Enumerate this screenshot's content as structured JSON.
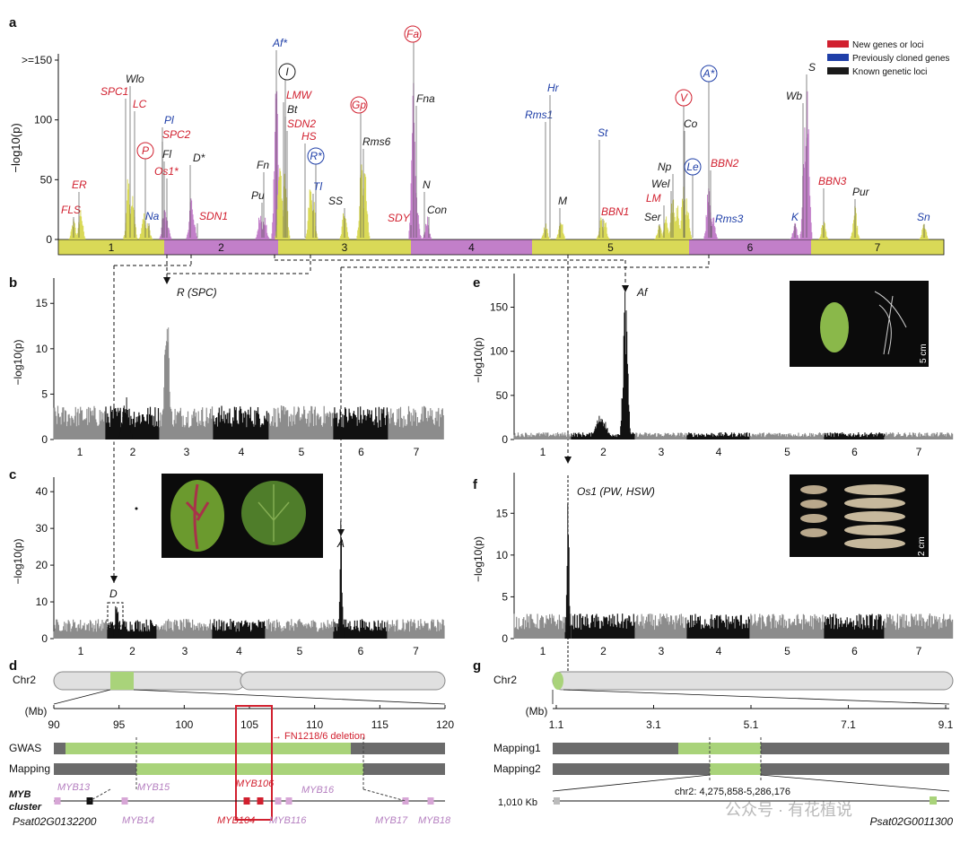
{
  "colors": {
    "new": "#d1202f",
    "prev": "#1f3fa8",
    "known": "#1a1a1a",
    "yellow": "#d9d957",
    "purple": "#c27fc9",
    "green": "#a9d37a",
    "grey": "#8c8c8c",
    "black": "#111111",
    "darkbar": "#6b6b6b",
    "lightbar": "#e0e0e0"
  },
  "panels": {
    "a": "a",
    "b": "b",
    "c": "c",
    "d": "d",
    "e": "e",
    "f": "f",
    "g": "g"
  },
  "legend": [
    {
      "label": "New genes or loci",
      "color": "#d1202f"
    },
    {
      "label": "Previously cloned genes",
      "color": "#1f3fa8"
    },
    {
      "label": "Known genetic loci",
      "color": "#1a1a1a"
    }
  ],
  "panel_a": {
    "ylabel": "−log10(p)",
    "yticks": [
      {
        "v": 0,
        "t": "0"
      },
      {
        "v": 50,
        "t": "50"
      },
      {
        "v": 100,
        "t": "100"
      },
      {
        "v": 150,
        "t": ">=150"
      }
    ],
    "chromosomes": [
      "1",
      "2",
      "3",
      "4",
      "5",
      "6",
      "7"
    ],
    "loci": [
      {
        "name": "FLS",
        "c": "new",
        "circ": false
      },
      {
        "name": "ER",
        "c": "new",
        "circ": false
      },
      {
        "name": "SPC1",
        "c": "new",
        "circ": false
      },
      {
        "name": "Wlo",
        "c": "known",
        "circ": false
      },
      {
        "name": "LC",
        "c": "new",
        "circ": false
      },
      {
        "name": "P",
        "c": "new",
        "circ": true
      },
      {
        "name": "Na",
        "c": "prev",
        "circ": false
      },
      {
        "name": "Pl",
        "c": "prev",
        "circ": false
      },
      {
        "name": "SPC2",
        "c": "new",
        "circ": false
      },
      {
        "name": "Fl",
        "c": "known",
        "circ": false
      },
      {
        "name": "Os1*",
        "c": "new",
        "circ": false
      },
      {
        "name": "D*",
        "c": "known",
        "circ": false
      },
      {
        "name": "SDN1",
        "c": "new",
        "circ": false
      },
      {
        "name": "Pu",
        "c": "known",
        "circ": false
      },
      {
        "name": "Fn",
        "c": "known",
        "circ": false
      },
      {
        "name": "Af*",
        "c": "prev",
        "circ": false
      },
      {
        "name": "I",
        "c": "known",
        "circ": true
      },
      {
        "name": "LMW",
        "c": "new",
        "circ": false
      },
      {
        "name": "Bt",
        "c": "known",
        "circ": false
      },
      {
        "name": "SDN2",
        "c": "new",
        "circ": false
      },
      {
        "name": "HS",
        "c": "new",
        "circ": false
      },
      {
        "name": "R*",
        "c": "prev",
        "circ": true
      },
      {
        "name": "Tl",
        "c": "prev",
        "circ": false
      },
      {
        "name": "SS",
        "c": "known",
        "circ": false
      },
      {
        "name": "Gp",
        "c": "new",
        "circ": true
      },
      {
        "name": "Rms6",
        "c": "known",
        "circ": false
      },
      {
        "name": "Fa",
        "c": "new",
        "circ": true
      },
      {
        "name": "Fna",
        "c": "known",
        "circ": false
      },
      {
        "name": "SDY",
        "c": "new",
        "circ": false
      },
      {
        "name": "N",
        "c": "known",
        "circ": false
      },
      {
        "name": "Con",
        "c": "known",
        "circ": false
      },
      {
        "name": "Rms1",
        "c": "prev",
        "circ": false
      },
      {
        "name": "Hr",
        "c": "prev",
        "circ": false
      },
      {
        "name": "M",
        "c": "known",
        "circ": false
      },
      {
        "name": "St",
        "c": "prev",
        "circ": false
      },
      {
        "name": "BBN1",
        "c": "new",
        "circ": false
      },
      {
        "name": "Ser",
        "c": "known",
        "circ": false
      },
      {
        "name": "LM",
        "c": "new",
        "circ": false
      },
      {
        "name": "Wel",
        "c": "known",
        "circ": false
      },
      {
        "name": "Np",
        "c": "known",
        "circ": false
      },
      {
        "name": "V",
        "c": "new",
        "circ": true
      },
      {
        "name": "Co",
        "c": "known",
        "circ": false
      },
      {
        "name": "Le",
        "c": "prev",
        "circ": true
      },
      {
        "name": "A*",
        "c": "prev",
        "circ": true
      },
      {
        "name": "BBN2",
        "c": "new",
        "circ": false
      },
      {
        "name": "Rms3",
        "c": "prev",
        "circ": false
      },
      {
        "name": "K",
        "c": "prev",
        "circ": false
      },
      {
        "name": "Wb",
        "c": "known",
        "circ": false
      },
      {
        "name": "S",
        "c": "known",
        "circ": false
      },
      {
        "name": "BBN3",
        "c": "new",
        "circ": false
      },
      {
        "name": "Pur",
        "c": "known",
        "circ": false
      },
      {
        "name": "Sn",
        "c": "prev",
        "circ": false
      }
    ]
  },
  "panel_b": {
    "ylabel": "−log10(p)",
    "yticks": [
      "0",
      "5",
      "10",
      "15"
    ],
    "chromosomes": [
      "1",
      "2",
      "3",
      "4",
      "5",
      "6",
      "7"
    ],
    "peak_label": "R (SPC)"
  },
  "panel_c": {
    "ylabel": "−log10(p)",
    "yticks": [
      "0",
      "10",
      "20",
      "30",
      "40"
    ],
    "chromosomes": [
      "1",
      "2",
      "3",
      "4",
      "5",
      "6",
      "7"
    ],
    "peak1": "D",
    "peak2": "A"
  },
  "panel_e": {
    "ylabel": "−log10(p)",
    "yticks": [
      "0",
      "50",
      "100",
      "150"
    ],
    "chromosomes": [
      "1",
      "2",
      "3",
      "4",
      "5",
      "6",
      "7"
    ],
    "peak_label": "Af",
    "scale": "5 cm"
  },
  "panel_f": {
    "ylabel": "−log10(p)",
    "yticks": [
      "0",
      "5",
      "10",
      "15"
    ],
    "chromosomes": [
      "1",
      "2",
      "3",
      "4",
      "5",
      "6",
      "7"
    ],
    "peak_label": "Os1 (PW, HSW)",
    "scale": "2 cm"
  },
  "panel_d": {
    "chr": "Chr2",
    "mb": "(Mb)",
    "ticks": [
      "90",
      "95",
      "100",
      "105",
      "110",
      "115",
      "120"
    ],
    "rows": [
      "GWAS",
      "Mapping"
    ],
    "deletion": "FN1218/6 deletion",
    "cluster_label_1": "MYB",
    "cluster_label_2": "cluster",
    "genes_top": [
      "MYB13",
      "MYB15",
      "MYB106",
      "MYB16"
    ],
    "genes_bottom": [
      "MYB14",
      "MYB104",
      "MYB116",
      "MYB17",
      "MYB18"
    ],
    "gene_id": "Psat02G0132200"
  },
  "panel_g": {
    "chr": "Chr2",
    "mb": "(Mb)",
    "ticks": [
      "1.1",
      "3.1",
      "5.1",
      "7.1",
      "9.1"
    ],
    "rows": [
      "Mapping1",
      "Mapping2"
    ],
    "interval": "chr2: 4,275,858-5,286,176",
    "size": "1,010 Kb",
    "gene_id": "Psat02G0011300"
  },
  "watermark": "公众号 · 有花植说"
}
